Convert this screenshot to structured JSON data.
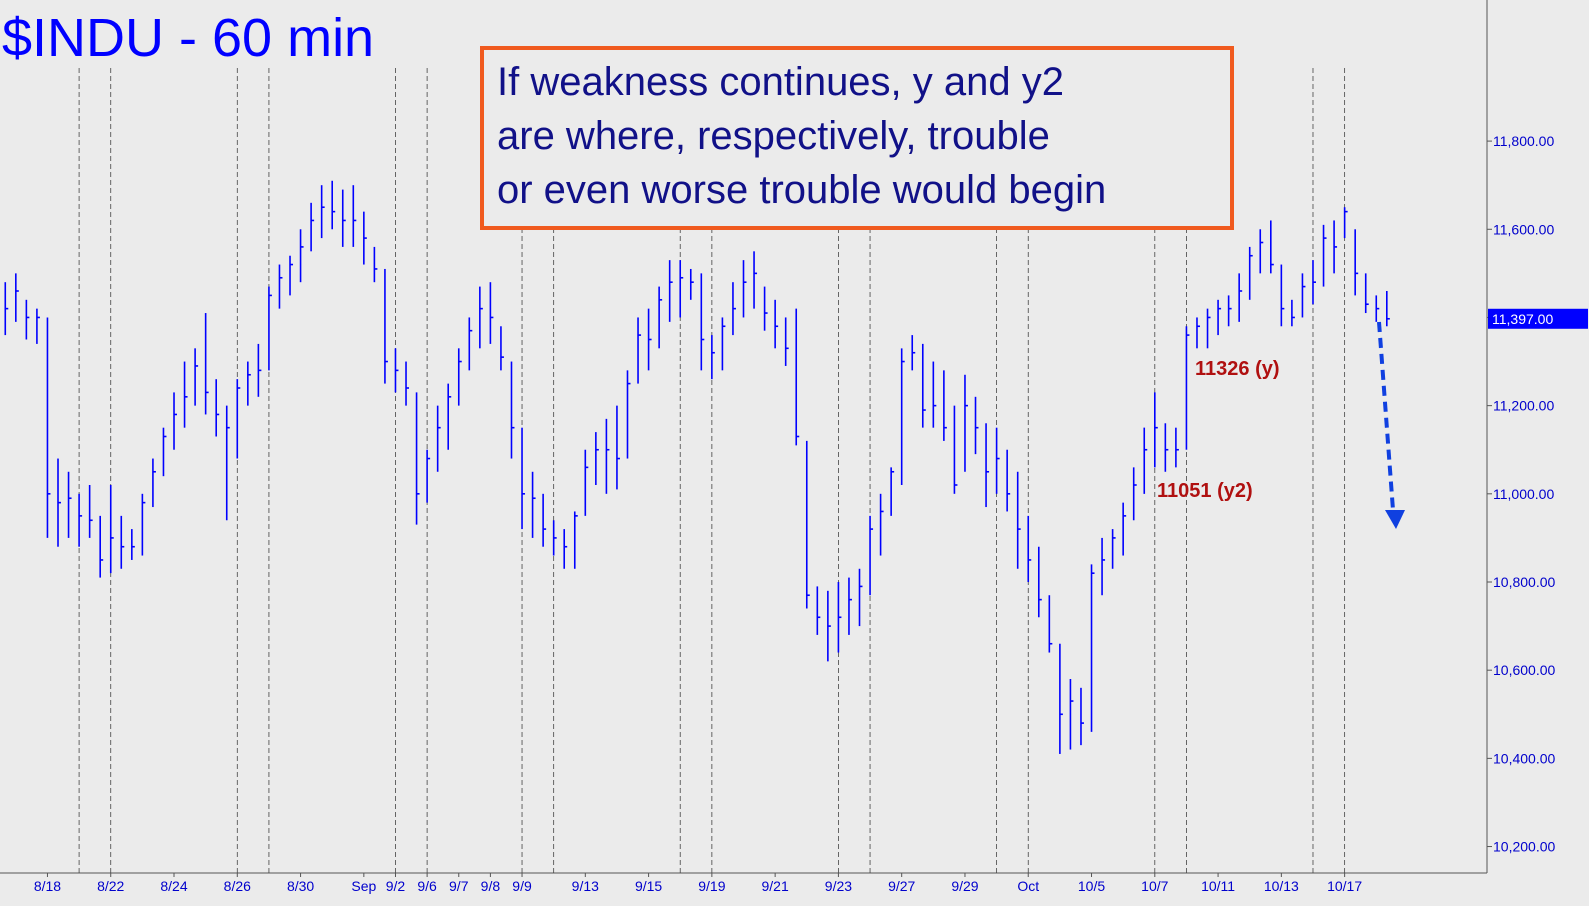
{
  "chart_data": {
    "type": "ohlc",
    "title": "$INDU - 60 min",
    "callout": [
      "If weakness continues, y and y2",
      "are where, respectively, trouble",
      "or even worse trouble would begin"
    ],
    "annotations": [
      "11326 (y)",
      "11051 (y2)"
    ],
    "color": "#0000ff",
    "last_price": {
      "value": 11397,
      "label": "11,397.00"
    },
    "xlim": [
      0,
      141
    ],
    "ylim": [
      10140,
      12120
    ],
    "yticks": [
      {
        "value": 10200,
        "label": "10,200.00"
      },
      {
        "value": 10400,
        "label": "10,400.00"
      },
      {
        "value": 10600,
        "label": "10,600.00"
      },
      {
        "value": 10800,
        "label": "10,800.00"
      },
      {
        "value": 11000,
        "label": "11,000.00"
      },
      {
        "value": 11200,
        "label": "11,200.00"
      },
      {
        "value": 11400,
        "label": "11,400.00"
      },
      {
        "value": 11600,
        "label": "11,600.00"
      },
      {
        "value": 11800,
        "label": "11,800.00"
      }
    ],
    "xticks": [
      {
        "value": 4.5,
        "label": "8/18"
      },
      {
        "value": 10.5,
        "label": "8/22"
      },
      {
        "value": 16.5,
        "label": "8/24"
      },
      {
        "value": 22.5,
        "label": "8/26"
      },
      {
        "value": 28.5,
        "label": "8/30"
      },
      {
        "value": 34.5,
        "label": "Sep"
      },
      {
        "value": 37.5,
        "label": "9/2"
      },
      {
        "value": 40.5,
        "label": "9/6"
      },
      {
        "value": 43.5,
        "label": "9/7"
      },
      {
        "value": 46.5,
        "label": "9/8"
      },
      {
        "value": 49.5,
        "label": "9/9"
      },
      {
        "value": 55.5,
        "label": "9/13"
      },
      {
        "value": 61.5,
        "label": "9/15"
      },
      {
        "value": 67.5,
        "label": "9/19"
      },
      {
        "value": 73.5,
        "label": "9/21"
      },
      {
        "value": 79.5,
        "label": "9/23"
      },
      {
        "value": 85.5,
        "label": "9/27"
      },
      {
        "value": 91.5,
        "label": "9/29"
      },
      {
        "value": 97.5,
        "label": "Oct"
      },
      {
        "value": 103.5,
        "label": "10/5"
      },
      {
        "value": 109.5,
        "label": "10/7"
      },
      {
        "value": 115.5,
        "label": "10/11"
      },
      {
        "value": 121.5,
        "label": "10/13"
      },
      {
        "value": 127.5,
        "label": "10/17"
      }
    ],
    "separators": [
      7.5,
      10.5,
      22.5,
      25.5,
      37.5,
      40.5,
      49.5,
      52.5,
      64.5,
      67.5,
      79.5,
      82.5,
      94.5,
      97.5,
      109.5,
      112.5,
      124.5,
      127.5
    ],
    "bars": [
      [
        11480,
        11360,
        11420
      ],
      [
        11500,
        11390,
        11460
      ],
      [
        11440,
        11350,
        11400
      ],
      [
        11420,
        11340,
        11400
      ],
      [
        11400,
        10900,
        11000
      ],
      [
        11080,
        10880,
        10980
      ],
      [
        11050,
        10900,
        10990
      ],
      [
        11000,
        10880,
        10950
      ],
      [
        11020,
        10900,
        10940
      ],
      [
        10950,
        10810,
        10850
      ],
      [
        11020,
        10820,
        10900
      ],
      [
        10950,
        10830,
        10880
      ],
      [
        10920,
        10850,
        10880
      ],
      [
        11000,
        10860,
        10980
      ],
      [
        11080,
        10970,
        11050
      ],
      [
        11150,
        11040,
        11130
      ],
      [
        11230,
        11100,
        11180
      ],
      [
        11300,
        11150,
        11220
      ],
      [
        11330,
        11200,
        11290
      ],
      [
        11410,
        11180,
        11230
      ],
      [
        11260,
        11130,
        11180
      ],
      [
        11200,
        10940,
        11150
      ],
      [
        11260,
        11080,
        11240
      ],
      [
        11300,
        11200,
        11270
      ],
      [
        11340,
        11220,
        11280
      ],
      [
        11470,
        11280,
        11450
      ],
      [
        11520,
        11420,
        11490
      ],
      [
        11540,
        11450,
        11520
      ],
      [
        11600,
        11480,
        11560
      ],
      [
        11660,
        11550,
        11620
      ],
      [
        11700,
        11580,
        11650
      ],
      [
        11710,
        11600,
        11640
      ],
      [
        11690,
        11560,
        11620
      ],
      [
        11700,
        11560,
        11620
      ],
      [
        11640,
        11520,
        11580
      ],
      [
        11560,
        11480,
        11510
      ],
      [
        11510,
        11250,
        11300
      ],
      [
        11330,
        11230,
        11280
      ],
      [
        11300,
        11200,
        11240
      ],
      [
        11230,
        10930,
        11000
      ],
      [
        11100,
        10980,
        11080
      ],
      [
        11200,
        11050,
        11150
      ],
      [
        11250,
        11100,
        11220
      ],
      [
        11330,
        11200,
        11300
      ],
      [
        11400,
        11280,
        11370
      ],
      [
        11470,
        11330,
        11420
      ],
      [
        11480,
        11340,
        11400
      ],
      [
        11380,
        11280,
        11310
      ],
      [
        11300,
        11080,
        11150
      ],
      [
        11150,
        10920,
        11000
      ],
      [
        11050,
        10900,
        10990
      ],
      [
        11000,
        10880,
        10920
      ],
      [
        10940,
        10860,
        10900
      ],
      [
        10920,
        10830,
        10880
      ],
      [
        10960,
        10830,
        10950
      ],
      [
        11100,
        10950,
        11060
      ],
      [
        11140,
        11020,
        11100
      ],
      [
        11170,
        11000,
        11100
      ],
      [
        11200,
        11010,
        11080
      ],
      [
        11280,
        11080,
        11250
      ],
      [
        11400,
        11250,
        11360
      ],
      [
        11420,
        11280,
        11350
      ],
      [
        11470,
        11330,
        11440
      ],
      [
        11530,
        11390,
        11480
      ],
      [
        11530,
        11400,
        11490
      ],
      [
        11510,
        11440,
        11480
      ],
      [
        11500,
        11280,
        11350
      ],
      [
        11360,
        11260,
        11320
      ],
      [
        11400,
        11280,
        11380
      ],
      [
        11480,
        11360,
        11420
      ],
      [
        11530,
        11400,
        11480
      ],
      [
        11550,
        11420,
        11500
      ],
      [
        11470,
        11370,
        11410
      ],
      [
        11440,
        11330,
        11380
      ],
      [
        11400,
        11290,
        11330
      ],
      [
        11420,
        11110,
        11130
      ],
      [
        11120,
        10740,
        10770
      ],
      [
        10790,
        10680,
        10720
      ],
      [
        10780,
        10620,
        10700
      ],
      [
        10800,
        10640,
        10720
      ],
      [
        10810,
        10680,
        10760
      ],
      [
        10830,
        10700,
        10790
      ],
      [
        10950,
        10770,
        10920
      ],
      [
        11000,
        10860,
        10960
      ],
      [
        11060,
        10950,
        11050
      ],
      [
        11330,
        11020,
        11300
      ],
      [
        11360,
        11280,
        11320
      ],
      [
        11340,
        11150,
        11190
      ],
      [
        11300,
        11150,
        11200
      ],
      [
        11280,
        11120,
        11150
      ],
      [
        11200,
        11000,
        11020
      ],
      [
        11270,
        11050,
        11200
      ],
      [
        11220,
        11090,
        11150
      ],
      [
        11160,
        10970,
        11050
      ],
      [
        11150,
        11000,
        11080
      ],
      [
        11100,
        10960,
        11000
      ],
      [
        11050,
        10830,
        10920
      ],
      [
        10950,
        10800,
        10850
      ],
      [
        10880,
        10720,
        10760
      ],
      [
        10770,
        10640,
        10660
      ],
      [
        10660,
        10410,
        10500
      ],
      [
        10580,
        10420,
        10530
      ],
      [
        10560,
        10430,
        10480
      ],
      [
        10840,
        10460,
        10820
      ],
      [
        10900,
        10770,
        10850
      ],
      [
        10920,
        10830,
        10900
      ],
      [
        10980,
        10860,
        10950
      ],
      [
        11060,
        10940,
        11020
      ],
      [
        11150,
        11000,
        11100
      ],
      [
        11230,
        11060,
        11150
      ],
      [
        11160,
        11050,
        11100
      ],
      [
        11150,
        11060,
        11100
      ],
      [
        11380,
        11100,
        11360
      ],
      [
        11400,
        11330,
        11380
      ],
      [
        11420,
        11330,
        11400
      ],
      [
        11440,
        11360,
        11420
      ],
      [
        11450,
        11380,
        11420
      ],
      [
        11500,
        11390,
        11460
      ],
      [
        11560,
        11440,
        11540
      ],
      [
        11600,
        11500,
        11570
      ],
      [
        11620,
        11500,
        11520
      ],
      [
        11520,
        11380,
        11420
      ],
      [
        11440,
        11380,
        11400
      ],
      [
        11500,
        11400,
        11470
      ],
      [
        11530,
        11430,
        11480
      ],
      [
        11610,
        11470,
        11580
      ],
      [
        11620,
        11500,
        11560
      ],
      [
        11650,
        11580,
        11640
      ],
      [
        11600,
        11450,
        11500
      ],
      [
        11500,
        11410,
        11430
      ],
      [
        11450,
        11390,
        11420
      ],
      [
        11460,
        11380,
        11397
      ]
    ]
  }
}
